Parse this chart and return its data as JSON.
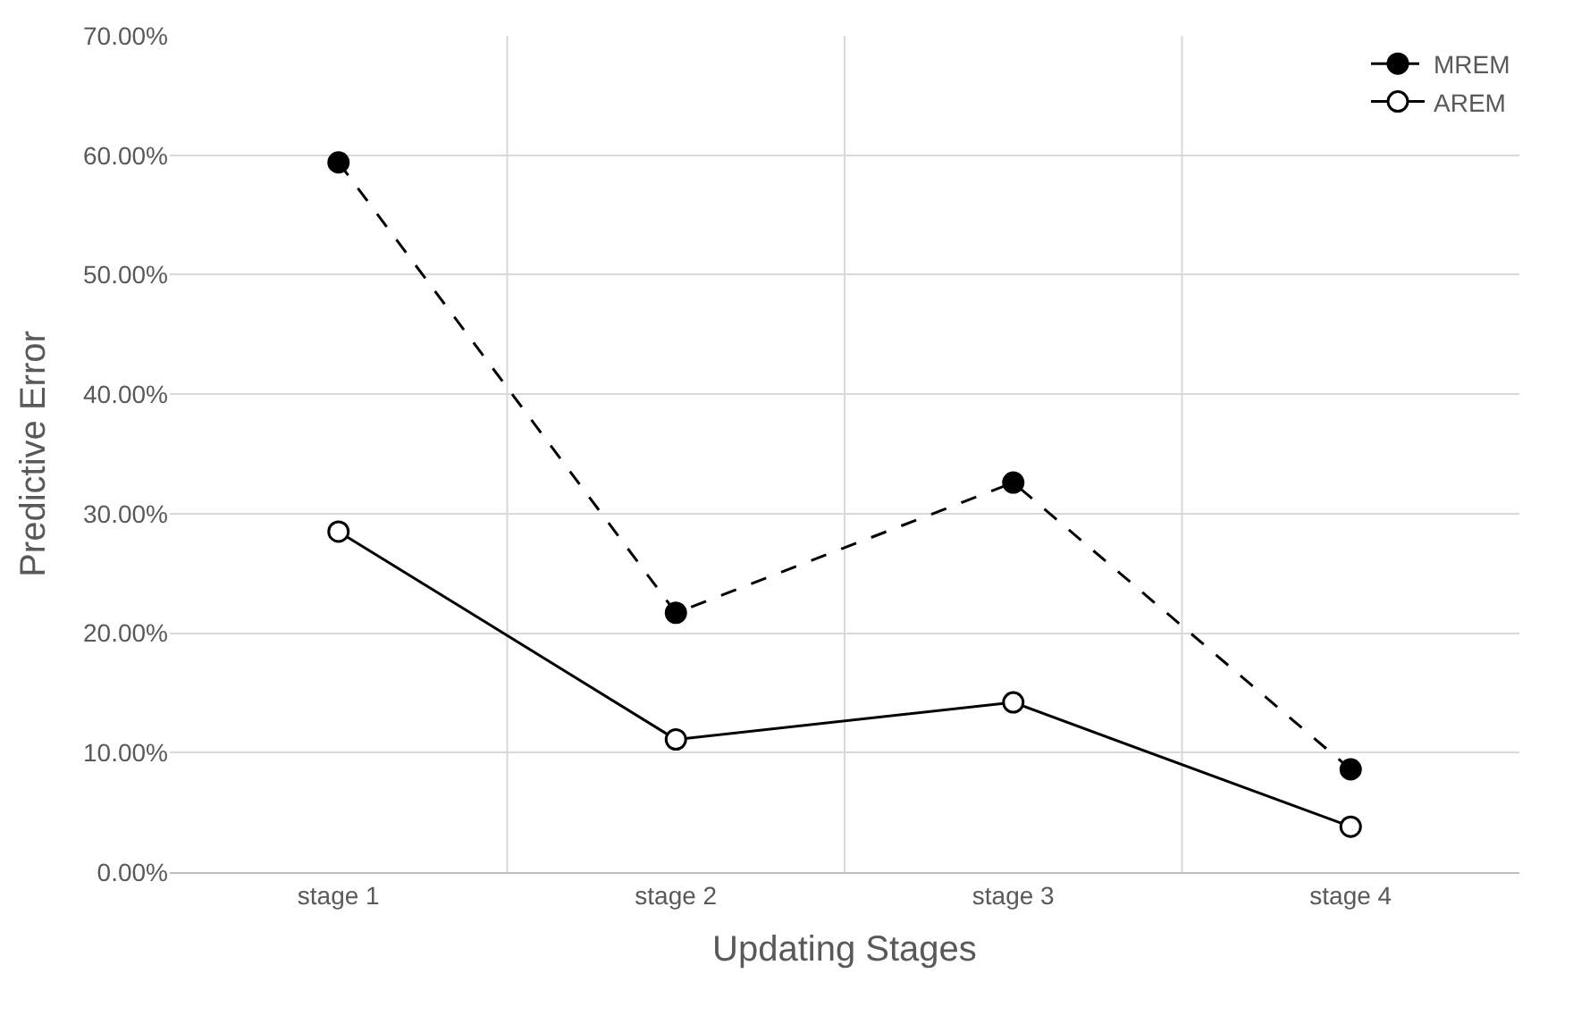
{
  "chart_data": {
    "type": "line",
    "xlabel": "Updating Stages",
    "ylabel": "Predictive Error",
    "categories": [
      "stage 1",
      "stage 2",
      "stage 3",
      "stage 4"
    ],
    "series": [
      {
        "name": "MREM",
        "color": "#000000",
        "values": [
          59.4,
          21.7,
          32.6,
          8.6
        ],
        "line_style": "dashed",
        "marker": "circle"
      },
      {
        "name": "AREM",
        "color": "#000000",
        "values": [
          28.5,
          11.1,
          14.2,
          3.8
        ],
        "line_style": "solid",
        "marker": "circle-open"
      }
    ],
    "ylim": [
      0,
      70
    ],
    "yticks": [
      {
        "value": 0,
        "label": "0.00%"
      },
      {
        "value": 10,
        "label": "10.00%"
      },
      {
        "value": 20,
        "label": "20.00%"
      },
      {
        "value": 30,
        "label": "30.00%"
      },
      {
        "value": 40,
        "label": "40.00%"
      },
      {
        "value": 50,
        "label": "50.00%"
      },
      {
        "value": 60,
        "label": "60.00%"
      },
      {
        "value": 70,
        "label": "70.00%"
      }
    ],
    "grid": true,
    "legend": "top right"
  }
}
